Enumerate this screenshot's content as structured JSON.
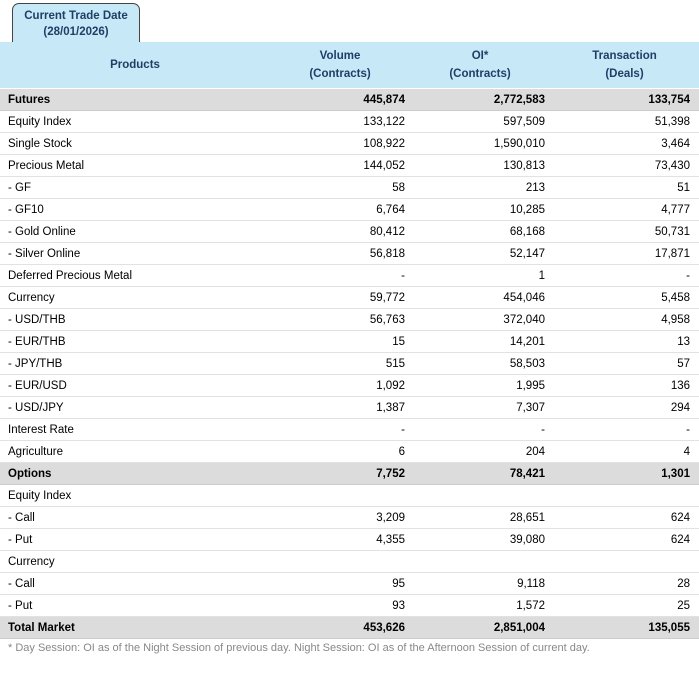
{
  "tab": {
    "line1": "Current Trade Date",
    "line2": "(28/01/2026)"
  },
  "table": {
    "columns": [
      {
        "label": "Products",
        "sub": ""
      },
      {
        "label": "Volume",
        "sub": "(Contracts)"
      },
      {
        "label": "OI*",
        "sub": "(Contracts)"
      },
      {
        "label": "Transaction",
        "sub": "(Deals)"
      }
    ],
    "rows": [
      {
        "type": "section",
        "product": "Futures",
        "volume": "445,874",
        "oi": "2,772,583",
        "transaction": "133,754"
      },
      {
        "type": "normal",
        "product": "Equity Index",
        "volume": "133,122",
        "oi": "597,509",
        "transaction": "51,398"
      },
      {
        "type": "normal",
        "product": "Single Stock",
        "volume": "108,922",
        "oi": "1,590,010",
        "transaction": "3,464"
      },
      {
        "type": "normal",
        "product": "Precious Metal",
        "volume": "144,052",
        "oi": "130,813",
        "transaction": "73,430"
      },
      {
        "type": "normal",
        "product": "- GF",
        "volume": "58",
        "oi": "213",
        "transaction": "51"
      },
      {
        "type": "normal",
        "product": "- GF10",
        "volume": "6,764",
        "oi": "10,285",
        "transaction": "4,777"
      },
      {
        "type": "normal",
        "product": "- Gold Online",
        "volume": "80,412",
        "oi": "68,168",
        "transaction": "50,731"
      },
      {
        "type": "normal",
        "product": "- Silver Online",
        "volume": "56,818",
        "oi": "52,147",
        "transaction": "17,871"
      },
      {
        "type": "normal",
        "product": "Deferred Precious Metal",
        "volume": "-",
        "oi": "1",
        "transaction": "-"
      },
      {
        "type": "normal",
        "product": "Currency",
        "volume": "59,772",
        "oi": "454,046",
        "transaction": "5,458"
      },
      {
        "type": "normal",
        "product": "- USD/THB",
        "volume": "56,763",
        "oi": "372,040",
        "transaction": "4,958"
      },
      {
        "type": "normal",
        "product": "- EUR/THB",
        "volume": "15",
        "oi": "14,201",
        "transaction": "13"
      },
      {
        "type": "normal",
        "product": "- JPY/THB",
        "volume": "515",
        "oi": "58,503",
        "transaction": "57"
      },
      {
        "type": "normal",
        "product": "- EUR/USD",
        "volume": "1,092",
        "oi": "1,995",
        "transaction": "136"
      },
      {
        "type": "normal",
        "product": "- USD/JPY",
        "volume": "1,387",
        "oi": "7,307",
        "transaction": "294"
      },
      {
        "type": "normal",
        "product": "Interest Rate",
        "volume": "-",
        "oi": "-",
        "transaction": "-"
      },
      {
        "type": "normal",
        "product": "Agriculture",
        "volume": "6",
        "oi": "204",
        "transaction": "4"
      },
      {
        "type": "section",
        "product": "Options",
        "volume": "7,752",
        "oi": "78,421",
        "transaction": "1,301"
      },
      {
        "type": "subsection",
        "product": "Equity Index",
        "volume": "",
        "oi": "",
        "transaction": ""
      },
      {
        "type": "normal",
        "product": "- Call",
        "volume": "3,209",
        "oi": "28,651",
        "transaction": "624"
      },
      {
        "type": "normal",
        "product": "- Put",
        "volume": "4,355",
        "oi": "39,080",
        "transaction": "624"
      },
      {
        "type": "subsection",
        "product": "Currency",
        "volume": "",
        "oi": "",
        "transaction": ""
      },
      {
        "type": "normal",
        "product": "- Call",
        "volume": "95",
        "oi": "9,118",
        "transaction": "28"
      },
      {
        "type": "normal",
        "product": "- Put",
        "volume": "93",
        "oi": "1,572",
        "transaction": "25"
      },
      {
        "type": "section",
        "product": "Total Market",
        "volume": "453,626",
        "oi": "2,851,004",
        "transaction": "135,055"
      }
    ]
  },
  "footnote": "* Day Session: OI as of the Night Session of previous day. Night Session: OI as of the Afternoon Session of current day.",
  "colors": {
    "header_bg": "#c7e8f7",
    "header_text": "#1e3f66",
    "section_bg": "#dcdcdc",
    "section_border": "#cccccc",
    "row_border": "#e2e2e2",
    "footnote_text": "#888888",
    "tab_border": "#444444"
  }
}
